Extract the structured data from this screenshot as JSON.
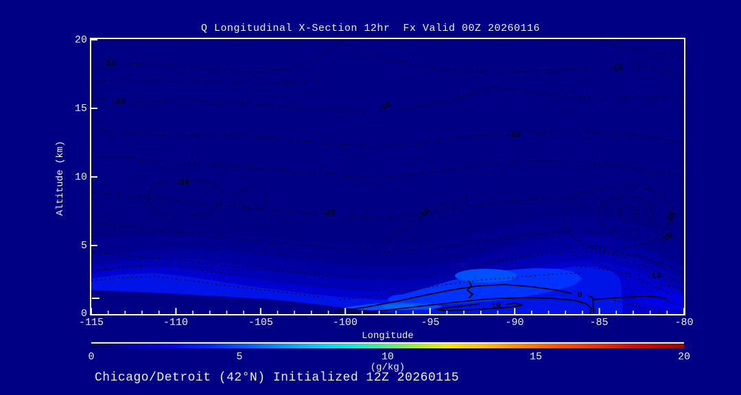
{
  "header": {
    "title": "Q Longitudinal X-Section 12hr  Fx Valid 00Z 20260116"
  },
  "footer": {
    "caption": "Chicago/Detroit (42°N) Initialized 12Z 20260115"
  },
  "colors": {
    "background": "#000084",
    "frame": "#FFFFFF",
    "text": "#F0F0FF",
    "contour": "#000000"
  },
  "chart_data": {
    "type": "heatmap",
    "subtype": "filled-contour vertical cross-section with overlaid contour lines",
    "title": "Q Longitudinal X-Section 12hr  Fx Valid 00Z 20260116",
    "xlabel": "Longitude",
    "ylabel": "Altitude (km)",
    "xlim": [
      -115,
      -80
    ],
    "ylim": [
      0,
      20
    ],
    "x_tick_labels": [
      "-115",
      "-110",
      "-105",
      "-100",
      "-95",
      "-90",
      "-85",
      "-80"
    ],
    "x_minor_tick_interval_deg": 1,
    "y_tick_labels": [
      "20",
      "15",
      "10",
      "5",
      "0"
    ],
    "grid": false,
    "colorbar": {
      "label": "(g/kg)",
      "tick_labels": [
        "0",
        "5",
        "10",
        "15",
        "20"
      ],
      "min": 0,
      "max": 20,
      "palette": "dark blue → blue → cyan → green → yellow → orange → red → dark red"
    },
    "shaded_field": {
      "name": "Q (specific humidity)",
      "units": "g/kg",
      "value_range_on_screen": [
        0,
        3
      ],
      "note": "all shading stays in the blue end of the scale; brightest core ≈ 2-3 g/kg",
      "max_region": {
        "lon": [
          -96,
          -88
        ],
        "alt_km": [
          1,
          4
        ]
      },
      "secondary_bright_band": {
        "lon": [
          -115,
          -104
        ],
        "alt_km": [
          1.5,
          3
        ]
      }
    },
    "terrain_profile": [
      {
        "lon": -115,
        "alt_km": 1.8
      },
      {
        "lon": -110,
        "alt_km": 1.5
      },
      {
        "lon": -105,
        "alt_km": 1.1
      },
      {
        "lon": -100,
        "alt_km": 0.4
      },
      {
        "lon": -97,
        "alt_km": 0.0
      },
      {
        "lon": -80,
        "alt_km": 0.0
      }
    ],
    "contour_labels": [
      {
        "text": "-10",
        "value": -10,
        "lon": -114.0,
        "alt_km": 18.2,
        "style": "dashed"
      },
      {
        "text": "-20",
        "value": -20,
        "lon": -113.4,
        "alt_km": 15.5,
        "style": "dashed"
      },
      {
        "text": "-30",
        "value": -30,
        "lon": -109.7,
        "alt_km": 9.5,
        "style": "dashed"
      },
      {
        "text": "-10",
        "value": -10,
        "lon": -97.7,
        "alt_km": 15.0,
        "style": "dashed"
      },
      {
        "text": "-20",
        "value": -20,
        "lon": -90.1,
        "alt_km": 13.0,
        "style": "dashed"
      },
      {
        "text": "-10",
        "value": -10,
        "lon": -84.1,
        "alt_km": 17.9,
        "style": "dashed"
      },
      {
        "text": "-20",
        "value": -20,
        "lon": -101.0,
        "alt_km": 7.4,
        "style": "dashed"
      },
      {
        "text": "-10",
        "value": -10,
        "lon": -95.4,
        "alt_km": 7.3,
        "style": "dashed"
      },
      {
        "text": "-30",
        "value": -30,
        "lon": -80.8,
        "alt_km": 6.9,
        "style": "dashed"
      },
      {
        "text": "-20",
        "value": -20,
        "lon": -81.1,
        "alt_km": 5.5,
        "style": "dashed"
      },
      {
        "text": "-10",
        "value": -10,
        "lon": -81.8,
        "alt_km": 2.8,
        "style": "dashed"
      },
      {
        "text": "0",
        "value": 0,
        "lon": -86.2,
        "alt_km": 1.4,
        "style": "solid"
      },
      {
        "text": "10",
        "value": 10,
        "lon": -91.1,
        "alt_km": 0.6,
        "style": "solid"
      }
    ]
  }
}
